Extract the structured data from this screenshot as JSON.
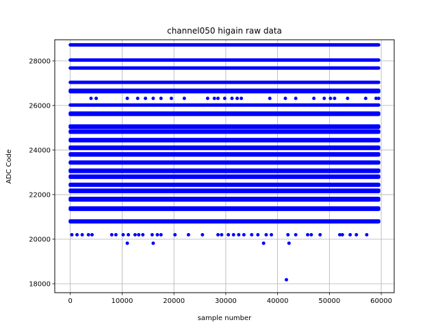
{
  "chart_data": {
    "type": "scatter",
    "title": "channel050 higain raw data",
    "xlabel": "sample number",
    "ylabel": "ADC Code",
    "xlim": [
      -3000,
      62500
    ],
    "ylim": [
      17600,
      28950
    ],
    "xticks": [
      0,
      10000,
      20000,
      30000,
      40000,
      50000,
      60000
    ],
    "yticks": [
      18000,
      20000,
      22000,
      24000,
      26000,
      28000
    ],
    "grid": true,
    "marker_color": "#0000ff",
    "series": [
      {
        "x_start": 0,
        "x_end": 59500,
        "dense_levels": [
          20780,
          20820,
          21340,
          21400,
          21760,
          21830,
          22140,
          22200,
          22420,
          22460,
          22780,
          22830,
          23040,
          23100,
          23420,
          23460,
          23780,
          23830,
          24080,
          24130,
          24420,
          24470,
          24800,
          24850,
          25020,
          25080,
          25600,
          25660,
          26020,
          26620,
          26680,
          27040,
          27680,
          28040,
          28720
        ],
        "sparse_points": [
          [
            300,
            20200
          ],
          [
            1300,
            20200
          ],
          [
            2300,
            20200
          ],
          [
            3500,
            20200
          ],
          [
            4200,
            20200
          ],
          [
            8000,
            20200
          ],
          [
            8800,
            20200
          ],
          [
            10200,
            20200
          ],
          [
            11000,
            19820
          ],
          [
            11200,
            20200
          ],
          [
            12500,
            20200
          ],
          [
            13200,
            20200
          ],
          [
            14000,
            20200
          ],
          [
            15800,
            20200
          ],
          [
            16000,
            19820
          ],
          [
            16800,
            20200
          ],
          [
            17500,
            20200
          ],
          [
            20200,
            20200
          ],
          [
            22800,
            20200
          ],
          [
            25500,
            20200
          ],
          [
            28500,
            20200
          ],
          [
            29200,
            20200
          ],
          [
            30500,
            20200
          ],
          [
            31500,
            20200
          ],
          [
            32500,
            20200
          ],
          [
            33500,
            20200
          ],
          [
            35000,
            20200
          ],
          [
            36200,
            20200
          ],
          [
            37300,
            19820
          ],
          [
            37800,
            20200
          ],
          [
            38800,
            20200
          ],
          [
            41700,
            18180
          ],
          [
            42200,
            19820
          ],
          [
            42000,
            20200
          ],
          [
            43500,
            20200
          ],
          [
            45800,
            20200
          ],
          [
            46500,
            20200
          ],
          [
            48200,
            20200
          ],
          [
            52000,
            20200
          ],
          [
            52500,
            20200
          ],
          [
            54000,
            20200
          ],
          [
            55200,
            20200
          ],
          [
            57200,
            20200
          ],
          [
            4000,
            26320
          ],
          [
            5000,
            26320
          ],
          [
            11000,
            26320
          ],
          [
            13000,
            26320
          ],
          [
            14500,
            26320
          ],
          [
            16000,
            26320
          ],
          [
            17500,
            26320
          ],
          [
            19500,
            26320
          ],
          [
            22000,
            26320
          ],
          [
            26500,
            26320
          ],
          [
            27800,
            26320
          ],
          [
            28500,
            26320
          ],
          [
            29800,
            26320
          ],
          [
            31200,
            26320
          ],
          [
            32200,
            26320
          ],
          [
            33000,
            26320
          ],
          [
            38500,
            26320
          ],
          [
            41500,
            26320
          ],
          [
            43500,
            26320
          ],
          [
            47000,
            26320
          ],
          [
            49000,
            26320
          ],
          [
            50200,
            26320
          ],
          [
            51000,
            26320
          ],
          [
            53500,
            26320
          ],
          [
            57000,
            26320
          ],
          [
            59000,
            26320
          ],
          [
            59500,
            26320
          ]
        ]
      }
    ]
  }
}
